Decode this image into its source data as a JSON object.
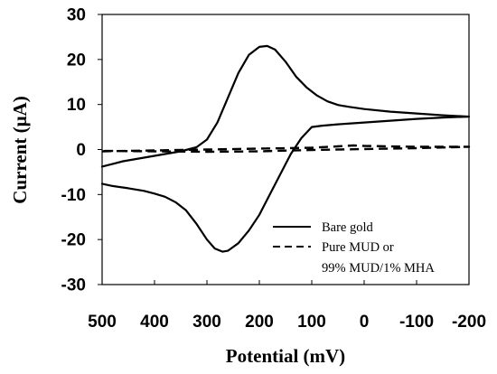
{
  "chart_data": {
    "type": "line",
    "title": "",
    "xlabel": "Potential (mV)",
    "ylabel": "Current (μA)",
    "xlim": [
      500,
      -200
    ],
    "ylim": [
      -30,
      30
    ],
    "x_reversed": true,
    "grid": false,
    "legend_position": "lower-right",
    "x_ticks": [
      "500",
      "400",
      "300",
      "200",
      "100",
      "0",
      "-100",
      "-200"
    ],
    "x_tick_values": [
      500,
      400,
      300,
      200,
      100,
      0,
      -100,
      -200
    ],
    "y_ticks": [
      "30",
      "20",
      "10",
      "0",
      "-10",
      "-20",
      "-30"
    ],
    "y_tick_values": [
      30,
      20,
      10,
      0,
      -10,
      -20,
      -30
    ],
    "series": [
      {
        "name": "Bare gold",
        "style": "solid",
        "color": "#000000",
        "points": [
          [
            500,
            -3.8
          ],
          [
            460,
            -2.6
          ],
          [
            420,
            -1.8
          ],
          [
            380,
            -1.0
          ],
          [
            350,
            -0.4
          ],
          [
            320,
            0.5
          ],
          [
            300,
            2.2
          ],
          [
            280,
            6.0
          ],
          [
            260,
            11.5
          ],
          [
            240,
            17.0
          ],
          [
            220,
            21.0
          ],
          [
            200,
            22.8
          ],
          [
            185,
            23.0
          ],
          [
            170,
            22.2
          ],
          [
            150,
            19.5
          ],
          [
            130,
            16.2
          ],
          [
            110,
            13.8
          ],
          [
            90,
            12.0
          ],
          [
            70,
            10.7
          ],
          [
            50,
            9.9
          ],
          [
            30,
            9.5
          ],
          [
            0,
            9.0
          ],
          [
            -50,
            8.4
          ],
          [
            -100,
            8.0
          ],
          [
            -150,
            7.6
          ],
          [
            -200,
            7.3
          ],
          [
            -150,
            7.1
          ],
          [
            -100,
            6.8
          ],
          [
            -50,
            6.4
          ],
          [
            0,
            6.0
          ],
          [
            50,
            5.6
          ],
          [
            80,
            5.3
          ],
          [
            100,
            5.0
          ],
          [
            120,
            2.5
          ],
          [
            140,
            -1.0
          ],
          [
            160,
            -5.5
          ],
          [
            180,
            -10.0
          ],
          [
            200,
            -14.5
          ],
          [
            220,
            -18.0
          ],
          [
            240,
            -20.8
          ],
          [
            260,
            -22.5
          ],
          [
            270,
            -22.7
          ],
          [
            285,
            -22.0
          ],
          [
            300,
            -20.0
          ],
          [
            320,
            -16.5
          ],
          [
            340,
            -13.5
          ],
          [
            360,
            -11.7
          ],
          [
            380,
            -10.5
          ],
          [
            400,
            -9.8
          ],
          [
            420,
            -9.2
          ],
          [
            450,
            -8.6
          ],
          [
            480,
            -8.1
          ],
          [
            500,
            -7.6
          ]
        ]
      },
      {
        "name": "Pure MUD or 99% MUD/1% MHA",
        "style": "dashed",
        "color": "#000000",
        "points": [
          [
            500,
            -0.4
          ],
          [
            400,
            -0.2
          ],
          [
            300,
            0.0
          ],
          [
            200,
            0.2
          ],
          [
            100,
            0.4
          ],
          [
            50,
            0.7
          ],
          [
            20,
            0.9
          ],
          [
            0,
            0.8
          ],
          [
            -100,
            0.6
          ],
          [
            -200,
            0.6
          ],
          [
            -100,
            0.3
          ],
          [
            0,
            0.1
          ],
          [
            100,
            -0.1
          ],
          [
            200,
            -0.4
          ],
          [
            300,
            -0.5
          ],
          [
            400,
            -0.4
          ],
          [
            500,
            -0.3
          ]
        ]
      }
    ],
    "legend": [
      {
        "label_lines": [
          "Bare gold"
        ],
        "style": "solid"
      },
      {
        "label_lines": [
          "Pure MUD or",
          "99% MUD/1% MHA"
        ],
        "style": "dashed"
      }
    ]
  }
}
